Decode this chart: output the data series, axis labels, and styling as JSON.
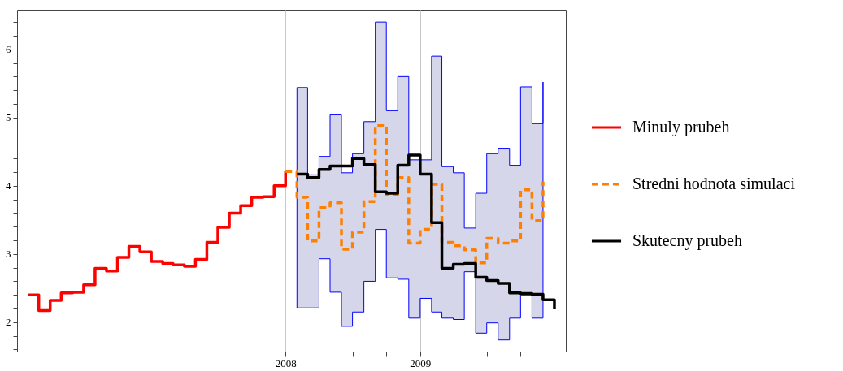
{
  "chart_data": {
    "type": "step",
    "xlim": [
      "2006-01",
      "2010-02"
    ],
    "xticks": [
      {
        "value": "2008-01",
        "label": "2008"
      },
      {
        "value": "2008-04",
        "label": null
      },
      {
        "value": "2008-07",
        "label": null
      },
      {
        "value": "2008-10",
        "label": null
      },
      {
        "value": "2009-01",
        "label": "2009"
      },
      {
        "value": "2009-04",
        "label": null
      },
      {
        "value": "2009-07",
        "label": null
      },
      {
        "value": "2009-10",
        "label": null
      }
    ],
    "ylim": [
      1.57,
      6.58
    ],
    "yticks": [
      {
        "value": 1.6,
        "label": null
      },
      {
        "value": 1.8,
        "label": null
      },
      2,
      {
        "value": 2.2,
        "label": null
      },
      {
        "value": 2.4,
        "label": null
      },
      {
        "value": 2.6,
        "label": null
      },
      {
        "value": 2.8,
        "label": null
      },
      3,
      {
        "value": 3.2,
        "label": null
      },
      {
        "value": 3.4,
        "label": null
      },
      {
        "value": 3.6,
        "label": null
      },
      {
        "value": 3.8,
        "label": null
      },
      4,
      {
        "value": 4.2,
        "label": null
      },
      {
        "value": 4.4,
        "label": null
      },
      {
        "value": 4.6,
        "label": null
      },
      {
        "value": 4.8,
        "label": null
      },
      5,
      {
        "value": 5.2,
        "label": null
      },
      {
        "value": 5.4,
        "label": null
      },
      {
        "value": 5.6,
        "label": null
      },
      {
        "value": 5.8,
        "label": null
      },
      6,
      {
        "value": 6.2,
        "label": null
      },
      {
        "value": 6.4,
        "label": null
      }
    ],
    "grid": "x",
    "legend": "right",
    "series": [
      {
        "name": "Minuly prubeh",
        "color": "#ff0000",
        "line_style": "solid",
        "x": [
          "2006-02",
          "2006-03",
          "2006-04",
          "2006-05",
          "2006-06",
          "2006-07",
          "2006-08",
          "2006-09",
          "2006-10",
          "2006-11",
          "2006-12",
          "2007-01",
          "2007-02",
          "2007-03",
          "2007-04",
          "2007-05",
          "2007-06",
          "2007-07",
          "2007-08",
          "2007-09",
          "2007-10",
          "2007-11",
          "2007-12",
          "2008-01"
        ],
        "values": [
          2.4,
          2.17,
          2.32,
          2.43,
          2.44,
          2.55,
          2.79,
          2.75,
          2.95,
          3.11,
          3.03,
          2.89,
          2.86,
          2.84,
          2.82,
          2.92,
          3.17,
          3.39,
          3.6,
          3.71,
          3.83,
          3.84,
          4.0,
          4.21
        ]
      },
      {
        "name": "Stredni hodnota simulaci",
        "color": "#ff8000",
        "line_style": "dashed",
        "x": [
          "2008-01",
          "2008-02",
          "2008-03",
          "2008-04",
          "2008-05",
          "2008-06",
          "2008-07",
          "2008-08",
          "2008-09",
          "2008-10",
          "2008-11",
          "2008-12",
          "2009-01",
          "2009-02",
          "2009-03",
          "2009-04",
          "2009-05",
          "2009-06",
          "2009-07",
          "2009-08",
          "2009-09",
          "2009-10",
          "2009-11",
          "2009-12"
        ],
        "values": [
          4.21,
          3.83,
          3.19,
          3.68,
          3.75,
          3.07,
          3.32,
          3.77,
          4.88,
          3.87,
          4.12,
          3.16,
          3.36,
          4.02,
          3.17,
          3.12,
          3.06,
          2.87,
          3.23,
          3.16,
          3.19,
          3.94,
          3.49,
          4.06
        ],
        "lower": [
          null,
          2.21,
          2.21,
          2.93,
          2.44,
          1.94,
          2.15,
          2.6,
          3.36,
          2.65,
          2.63,
          2.06,
          2.35,
          2.15,
          2.06,
          2.04,
          2.74,
          1.84,
          1.99,
          1.74,
          2.06,
          2.4,
          2.06,
          2.64
        ],
        "upper": [
          null,
          5.44,
          4.16,
          4.43,
          5.04,
          4.19,
          4.47,
          4.94,
          6.4,
          5.1,
          5.6,
          4.38,
          4.38,
          5.9,
          4.28,
          4.19,
          3.38,
          3.89,
          4.47,
          4.55,
          4.3,
          5.45,
          4.91,
          5.52
        ]
      },
      {
        "name": "Skutecny prubeh",
        "color": "#000000",
        "line_style": "solid",
        "x": [
          "2008-02",
          "2008-03",
          "2008-04",
          "2008-05",
          "2008-06",
          "2008-07",
          "2008-08",
          "2008-09",
          "2008-10",
          "2008-11",
          "2008-12",
          "2009-01",
          "2009-02",
          "2009-03",
          "2009-04",
          "2009-05",
          "2009-06",
          "2009-07",
          "2009-08",
          "2009-09",
          "2009-10",
          "2009-11",
          "2009-12",
          "2010-01"
        ],
        "values": [
          4.17,
          4.12,
          4.24,
          4.29,
          4.29,
          4.4,
          4.31,
          3.91,
          3.89,
          4.3,
          4.45,
          4.17,
          3.46,
          2.79,
          2.85,
          2.86,
          2.66,
          2.61,
          2.57,
          2.43,
          2.42,
          2.41,
          2.33,
          2.19
        ]
      }
    ]
  }
}
